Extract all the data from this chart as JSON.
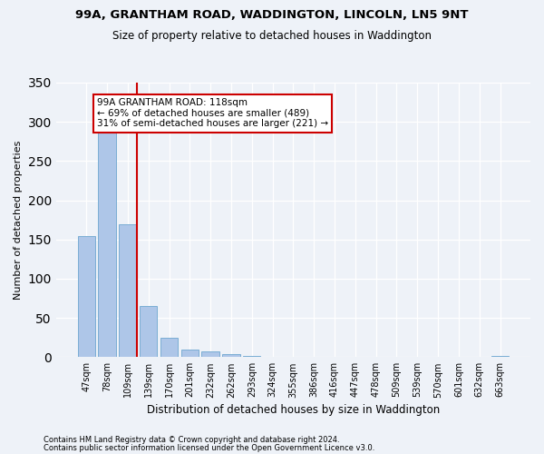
{
  "title1": "99A, GRANTHAM ROAD, WADDINGTON, LINCOLN, LN5 9NT",
  "title2": "Size of property relative to detached houses in Waddington",
  "xlabel": "Distribution of detached houses by size in Waddington",
  "ylabel": "Number of detached properties",
  "bar_labels": [
    "47sqm",
    "78sqm",
    "109sqm",
    "139sqm",
    "170sqm",
    "201sqm",
    "232sqm",
    "262sqm",
    "293sqm",
    "324sqm",
    "355sqm",
    "386sqm",
    "416sqm",
    "447sqm",
    "478sqm",
    "509sqm",
    "539sqm",
    "570sqm",
    "601sqm",
    "632sqm",
    "663sqm"
  ],
  "bar_values": [
    154,
    287,
    169,
    65,
    25,
    10,
    7,
    4,
    2,
    0,
    0,
    0,
    0,
    0,
    0,
    0,
    0,
    0,
    0,
    0,
    2
  ],
  "bar_color": "#aec6e8",
  "bar_edge_color": "#7aadd4",
  "vline_x_index": 2,
  "vline_color": "#cc0000",
  "annotation_lines": [
    "99A GRANTHAM ROAD: 118sqm",
    "← 69% of detached houses are smaller (489)",
    "31% of semi-detached houses are larger (221) →"
  ],
  "annotation_box_color": "white",
  "annotation_box_edge": "#cc0000",
  "ylim": [
    0,
    350
  ],
  "yticks": [
    0,
    50,
    100,
    150,
    200,
    250,
    300,
    350
  ],
  "footer1": "Contains HM Land Registry data © Crown copyright and database right 2024.",
  "footer2": "Contains public sector information licensed under the Open Government Licence v3.0.",
  "bg_color": "#eef2f8",
  "plot_bg_color": "#eef2f8",
  "title1_fontsize": 9.5,
  "title2_fontsize": 8.5,
  "xlabel_fontsize": 8.5,
  "ylabel_fontsize": 8,
  "tick_fontsize": 7,
  "annotation_fontsize": 7.5,
  "footer_fontsize": 6
}
